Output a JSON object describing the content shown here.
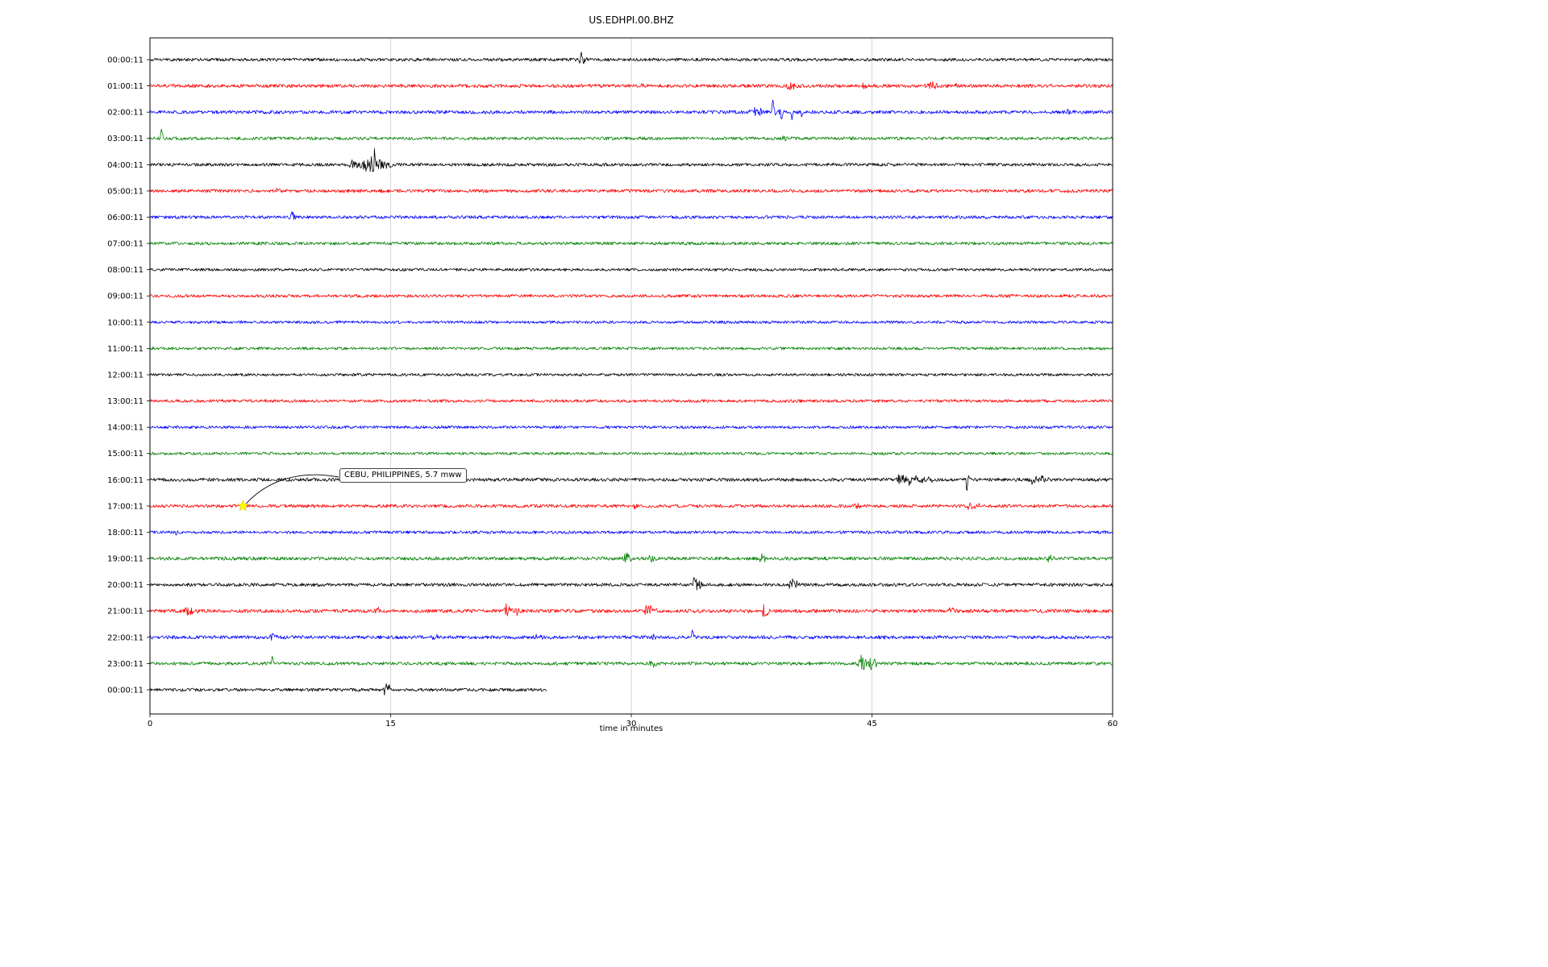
{
  "chart_data": {
    "type": "line",
    "subtype": "helicorder-seismogram",
    "title": "US.EDHPI.00.BHZ",
    "xlabel": "time in minutes",
    "xlim": [
      0,
      60
    ],
    "x_ticks": [
      0,
      15,
      30,
      45,
      60
    ],
    "x_gridlines": [
      15,
      30,
      45
    ],
    "grid": "vertical-only",
    "legend": "none",
    "trace_color_cycle": [
      "#000000",
      "#ff0000",
      "#0000ff",
      "#008000"
    ],
    "annotation": {
      "text": "CEBU, PHILIPPINES, 5.7 mww",
      "row_index": 17,
      "x_min": 5.8,
      "marker": "star",
      "marker_color": "#ffff00"
    },
    "rows": [
      {
        "label": "00:00:11",
        "color": "#000000",
        "noise": 1.9,
        "end": 60,
        "events": [
          {
            "x": 26.8,
            "amp": 10,
            "w": 0.3
          }
        ]
      },
      {
        "label": "01:00:11",
        "color": "#ff0000",
        "noise": 2.1,
        "end": 60,
        "events": [
          {
            "x": 30.6,
            "amp": 4,
            "w": 0.25
          },
          {
            "x": 39.8,
            "amp": 6,
            "w": 0.5
          },
          {
            "x": 44.5,
            "amp": 3,
            "w": 0.3
          },
          {
            "x": 48.5,
            "amp": 6,
            "w": 0.5
          },
          {
            "x": 50.3,
            "amp": 4,
            "w": 0.3
          }
        ]
      },
      {
        "label": "02:00:11",
        "color": "#0000ff",
        "noise": 2.1,
        "end": 60,
        "events": [
          {
            "x": 37.6,
            "amp": 5,
            "w": 0.8
          },
          {
            "x": 38.8,
            "amp": 22,
            "w": 0.09,
            "dir": -1
          },
          {
            "x": 39.0,
            "amp": 6,
            "w": 0.4
          },
          {
            "x": 39.35,
            "amp": 13,
            "w": 0.07,
            "dir": 1
          },
          {
            "x": 40.0,
            "amp": 11,
            "w": 0.07,
            "dir": 1
          },
          {
            "x": 40.6,
            "amp": 8,
            "w": 0.06,
            "dir": 1
          },
          {
            "x": 57.2,
            "amp": 6,
            "w": 0.35
          }
        ]
      },
      {
        "label": "03:00:11",
        "color": "#008000",
        "noise": 1.9,
        "end": 60,
        "events": [
          {
            "x": 0.7,
            "amp": 13,
            "w": 0.1,
            "dir": -1
          },
          {
            "x": 39.5,
            "amp": 7,
            "w": 0.2
          }
        ]
      },
      {
        "label": "04:00:11",
        "color": "#000000",
        "noise": 1.9,
        "end": 60,
        "events": [
          {
            "x": 12.6,
            "amp": 8,
            "w": 0.4
          },
          {
            "x": 13.3,
            "amp": 13,
            "w": 0.35
          },
          {
            "x": 13.8,
            "amp": 12,
            "w": 0.5
          },
          {
            "x": 14.0,
            "amp": 16,
            "w": 0.08,
            "dir": -1
          },
          {
            "x": 14.4,
            "amp": 7,
            "w": 0.6
          }
        ]
      },
      {
        "label": "05:00:11",
        "color": "#ff0000",
        "noise": 2.0,
        "end": 60,
        "events": [
          {
            "x": 8.0,
            "amp": 4,
            "w": 0.3
          }
        ]
      },
      {
        "label": "06:00:11",
        "color": "#0000ff",
        "noise": 1.9,
        "end": 60,
        "events": [
          {
            "x": 8.8,
            "amp": 7,
            "w": 0.2
          },
          {
            "x": 8.85,
            "amp": 6,
            "w": 0.08,
            "dir": -1
          }
        ]
      },
      {
        "label": "07:00:11",
        "color": "#008000",
        "noise": 1.9,
        "end": 60,
        "events": []
      },
      {
        "label": "08:00:11",
        "color": "#000000",
        "noise": 1.7,
        "end": 60,
        "events": []
      },
      {
        "label": "09:00:11",
        "color": "#ff0000",
        "noise": 1.9,
        "end": 60,
        "events": []
      },
      {
        "label": "10:00:11",
        "color": "#0000ff",
        "noise": 1.7,
        "end": 60,
        "events": []
      },
      {
        "label": "11:00:11",
        "color": "#008000",
        "noise": 1.7,
        "end": 60,
        "events": []
      },
      {
        "label": "12:00:11",
        "color": "#000000",
        "noise": 1.7,
        "end": 60,
        "events": []
      },
      {
        "label": "13:00:11",
        "color": "#ff0000",
        "noise": 1.8,
        "end": 60,
        "events": []
      },
      {
        "label": "14:00:11",
        "color": "#0000ff",
        "noise": 1.7,
        "end": 60,
        "events": []
      },
      {
        "label": "15:00:11",
        "color": "#008000",
        "noise": 1.7,
        "end": 60,
        "events": []
      },
      {
        "label": "16:00:11",
        "color": "#000000",
        "noise": 2.1,
        "end": 60,
        "events": [
          {
            "x": 46.6,
            "amp": 7,
            "w": 0.6
          },
          {
            "x": 47.4,
            "amp": 6,
            "w": 0.5
          },
          {
            "x": 48.3,
            "amp": 4,
            "w": 0.6
          },
          {
            "x": 50.9,
            "amp": 26,
            "w": 0.07,
            "dir": 1
          },
          {
            "x": 50.95,
            "amp": 7,
            "w": 0.12,
            "dir": -1
          },
          {
            "x": 54.9,
            "amp": 7,
            "w": 0.4
          },
          {
            "x": 55.6,
            "amp": 6,
            "w": 0.3
          }
        ]
      },
      {
        "label": "17:00:11",
        "color": "#ff0000",
        "noise": 2.0,
        "end": 60,
        "events": [
          {
            "x": 30.2,
            "amp": 4,
            "w": 0.3
          },
          {
            "x": 44.0,
            "amp": 3,
            "w": 0.3
          },
          {
            "x": 51.1,
            "amp": 5,
            "w": 0.6
          }
        ]
      },
      {
        "label": "18:00:11",
        "color": "#0000ff",
        "noise": 1.8,
        "end": 60,
        "events": [
          {
            "x": 1.6,
            "amp": 5,
            "w": 0.12
          }
        ]
      },
      {
        "label": "19:00:11",
        "color": "#008000",
        "noise": 2.1,
        "end": 60,
        "events": [
          {
            "x": 29.6,
            "amp": 8,
            "w": 0.35
          },
          {
            "x": 31.2,
            "amp": 6,
            "w": 0.3
          },
          {
            "x": 38.0,
            "amp": 6,
            "w": 0.35
          },
          {
            "x": 56.0,
            "amp": 5,
            "w": 0.3
          }
        ]
      },
      {
        "label": "20:00:11",
        "color": "#000000",
        "noise": 2.0,
        "end": 60,
        "events": [
          {
            "x": 33.9,
            "amp": 11,
            "w": 0.1,
            "dir": -1
          },
          {
            "x": 34.1,
            "amp": 6,
            "w": 0.3
          },
          {
            "x": 39.9,
            "amp": 8,
            "w": 0.3
          },
          {
            "x": 40.3,
            "amp": 5,
            "w": 0.2
          }
        ]
      },
      {
        "label": "21:00:11",
        "color": "#ff0000",
        "noise": 2.2,
        "end": 60,
        "events": [
          {
            "x": 2.3,
            "amp": 9,
            "w": 0.35
          },
          {
            "x": 14.1,
            "amp": 7,
            "w": 0.2
          },
          {
            "x": 22.2,
            "amp": 8,
            "w": 0.35
          },
          {
            "x": 22.8,
            "amp": 5,
            "w": 0.2
          },
          {
            "x": 31.0,
            "amp": 9,
            "w": 0.45
          },
          {
            "x": 38.3,
            "amp": 8,
            "w": 0.4
          },
          {
            "x": 49.8,
            "amp": 5,
            "w": 0.3
          }
        ]
      },
      {
        "label": "22:00:11",
        "color": "#0000ff",
        "noise": 2.1,
        "end": 60,
        "events": [
          {
            "x": 7.6,
            "amp": 6,
            "w": 0.25
          },
          {
            "x": 17.6,
            "amp": 4,
            "w": 0.3
          },
          {
            "x": 24.1,
            "amp": 6,
            "w": 0.3
          },
          {
            "x": 31.3,
            "amp": 6,
            "w": 0.35
          },
          {
            "x": 33.8,
            "amp": 9,
            "w": 0.1,
            "dir": -1
          },
          {
            "x": 45.8,
            "amp": 3,
            "w": 0.3
          }
        ]
      },
      {
        "label": "23:00:11",
        "color": "#008000",
        "noise": 2.0,
        "end": 60,
        "events": [
          {
            "x": 7.6,
            "amp": 11,
            "w": 0.1,
            "dir": -1
          },
          {
            "x": 31.2,
            "amp": 6,
            "w": 0.3
          },
          {
            "x": 33.6,
            "amp": 4,
            "w": 0.2
          },
          {
            "x": 44.3,
            "amp": 9,
            "w": 0.5
          },
          {
            "x": 44.9,
            "amp": 7,
            "w": 0.4
          }
        ]
      },
      {
        "label": "00:00:11",
        "color": "#000000",
        "noise": 1.9,
        "end": 24.7,
        "events": [
          {
            "x": 14.6,
            "amp": 9,
            "w": 0.3
          },
          {
            "x": 14.9,
            "amp": 8,
            "w": 0.08,
            "dir": -1
          }
        ]
      }
    ]
  }
}
